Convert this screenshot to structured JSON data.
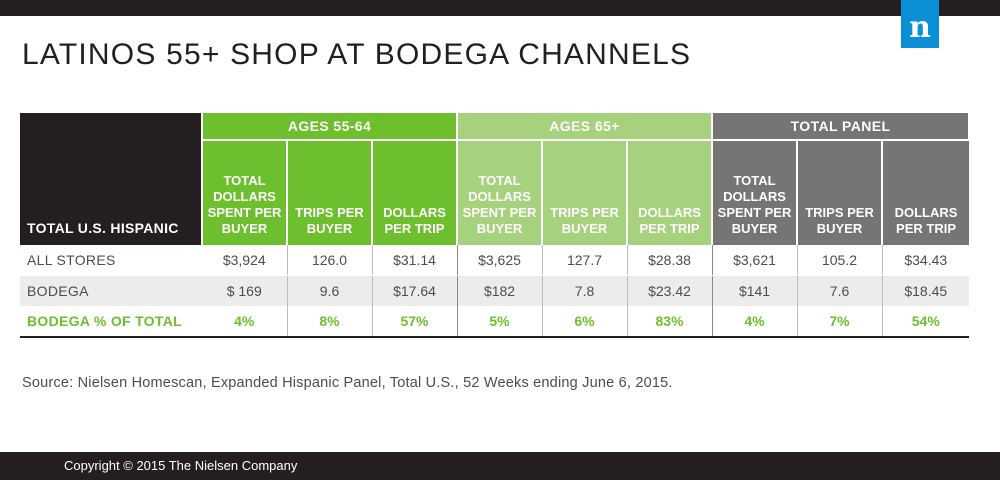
{
  "logo_letter": "n",
  "title": "LATINOS 55+ SHOP AT BODEGA CHANNELS",
  "source_note": "Source: Nielsen Homescan, Expanded Hispanic Panel, Total U.S., 52 Weeks ending June 6, 2015.",
  "footer": "Copyright © 2015 The Nielsen Company",
  "colors": {
    "ages_55_64": "#6dbf2d",
    "ages_65_plus": "#a6d27e",
    "total_panel": "#757575",
    "dark": "#231f20",
    "logo_blue": "#0b8fd6"
  },
  "chart_data": {
    "type": "table",
    "title": "LATINOS 55+ SHOP AT BODEGA CHANNELS",
    "corner_header": "TOTAL U.S. HISPANIC",
    "groups": [
      {
        "name": "AGES 55-64",
        "columns": [
          "TOTAL DOLLARS SPENT PER BUYER",
          "TRIPS PER BUYER",
          "DOLLARS PER TRIP"
        ]
      },
      {
        "name": "AGES 65+",
        "columns": [
          "TOTAL DOLLARS SPENT PER BUYER",
          "TRIPS PER BUYER",
          "DOLLARS PER TRIP"
        ]
      },
      {
        "name": "TOTAL PANEL",
        "columns": [
          "TOTAL DOLLARS SPENT PER BUYER",
          "TRIPS PER BUYER",
          "DOLLARS PER TRIP"
        ]
      }
    ],
    "rows": [
      {
        "label": "ALL STORES",
        "values": [
          "$3,924",
          "126.0",
          "$31.14",
          "$3,625",
          "127.7",
          "$28.38",
          "$3,621",
          "105.2",
          "$34.43"
        ]
      },
      {
        "label": "BODEGA",
        "values": [
          "$ 169",
          "9.6",
          "$17.64",
          "$182",
          "7.8",
          "$23.42",
          "$141",
          "7.6",
          "$18.45"
        ]
      },
      {
        "label": "BODEGA % OF TOTAL",
        "values": [
          "4%",
          "8%",
          "57%",
          "5%",
          "6%",
          "83%",
          "4%",
          "7%",
          "54%"
        ]
      }
    ]
  }
}
